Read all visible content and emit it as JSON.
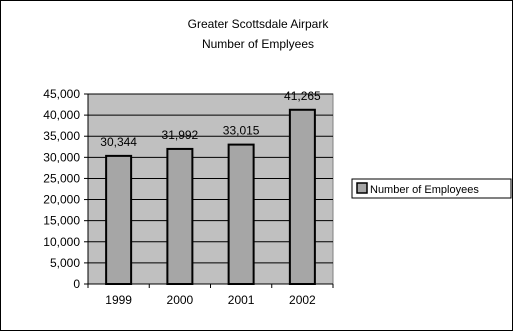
{
  "chart_data": {
    "type": "bar",
    "title": "Greater Scottsdale Airpark",
    "subtitle": "Number of Emplyees",
    "categories": [
      "1999",
      "2000",
      "2001",
      "2002"
    ],
    "series": [
      {
        "name": "Number of  Employees",
        "values": [
          30344,
          31992,
          33015,
          41265
        ]
      }
    ],
    "data_labels": [
      "30,344",
      "31,992",
      "33,015",
      "41,265"
    ],
    "y_ticks": [
      "0",
      "5,000",
      "10,000",
      "15,000",
      "20,000",
      "25,000",
      "30,000",
      "35,000",
      "40,000",
      "45,000"
    ],
    "ylim": [
      0,
      45000
    ],
    "y_step": 5000,
    "grid": true,
    "legend": "right",
    "colors": {
      "bar_fill": "#a6a6a6",
      "bar_stroke": "#000000",
      "plot_background": "#c0c0c0",
      "frame": "#000000"
    }
  }
}
